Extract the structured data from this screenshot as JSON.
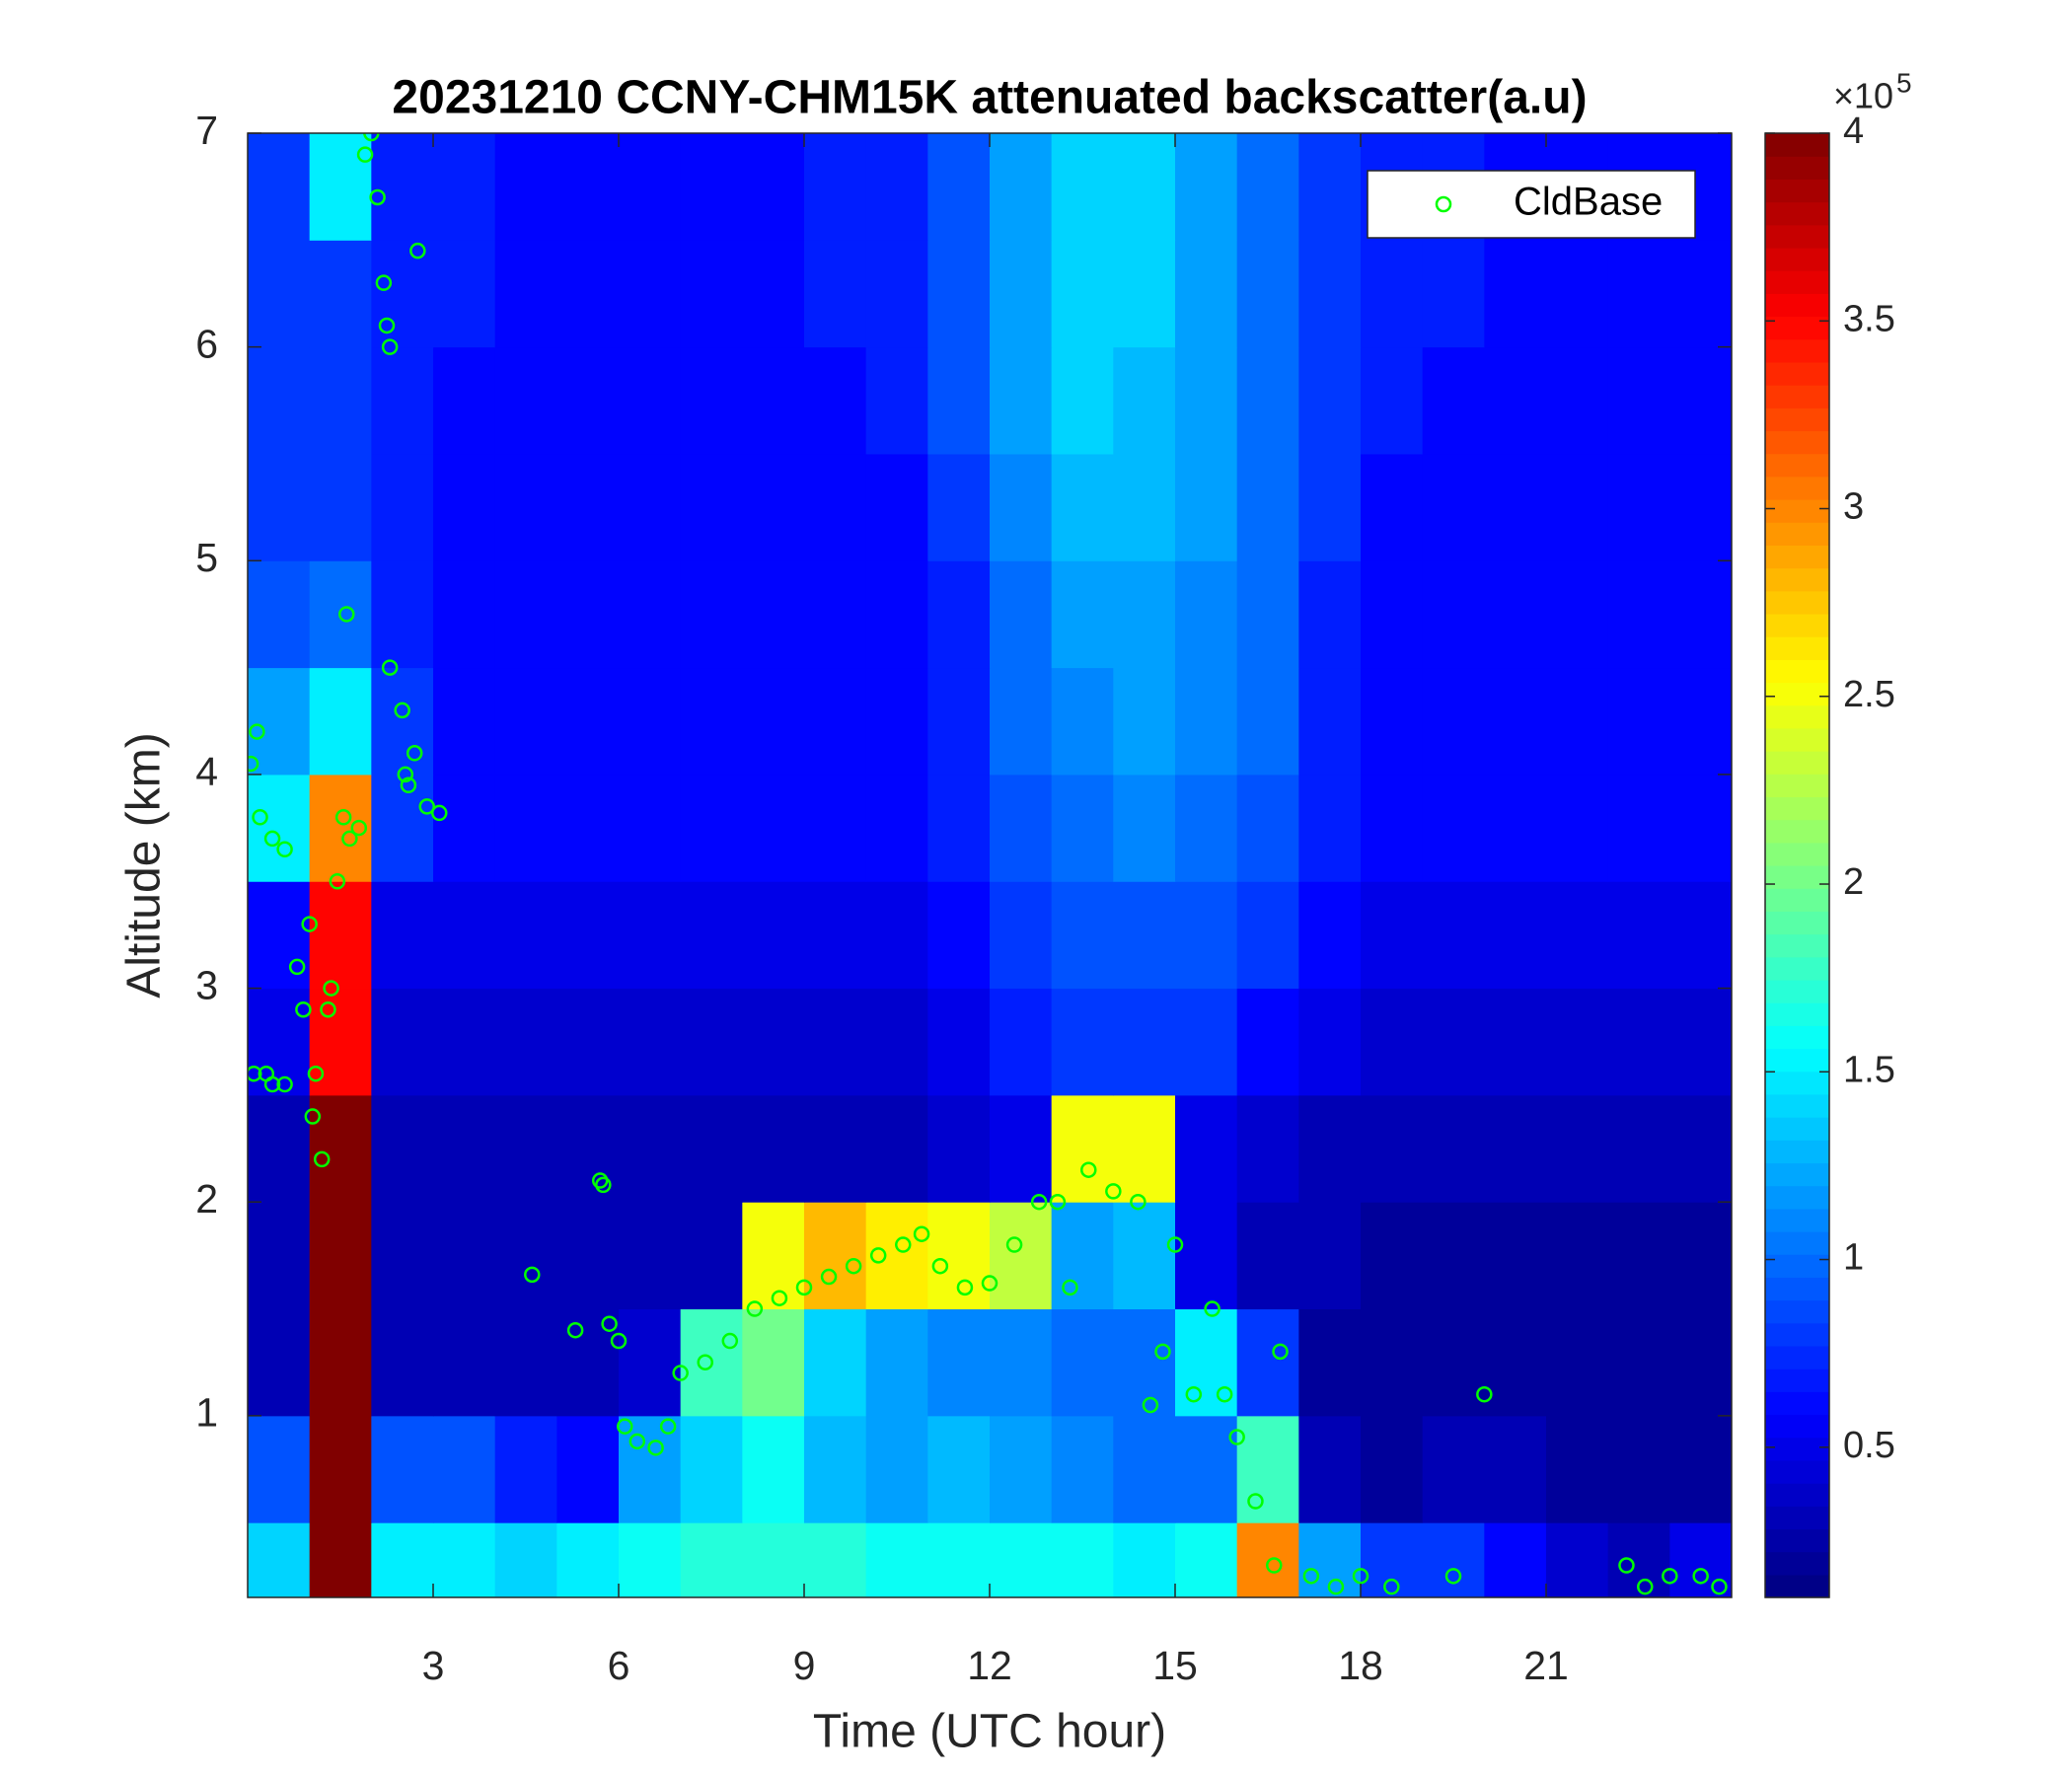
{
  "chart_data": {
    "type": "heatmap",
    "title": "20231210 CCNY-CHM15K attenuated backscatter(a.u)",
    "x_label": "Time (UTC hour)",
    "y_label": "Altitude (km)",
    "xlim": [
      0,
      24
    ],
    "ylim": [
      0.15,
      7
    ],
    "xticks": [
      3,
      6,
      9,
      12,
      15,
      18,
      21
    ],
    "yticks": [
      1,
      2,
      3,
      4,
      5,
      6,
      7
    ],
    "colormap": "jet",
    "clim": [
      0.1,
      4
    ],
    "cticks": [
      0.5,
      1,
      1.5,
      2,
      2.5,
      3,
      3.5,
      4
    ],
    "colorbar_multiplier": "×10",
    "colorbar_exponent": "5",
    "legend": "upper right",
    "x_edges": [
      0,
      1,
      2,
      3,
      4,
      5,
      6,
      7,
      8,
      9,
      10,
      11,
      12,
      13,
      14,
      15,
      16,
      17,
      18,
      19,
      20,
      21,
      22,
      23,
      24
    ],
    "y_edges": [
      0.15,
      0.5,
      1,
      1.5,
      2,
      2.5,
      3,
      3.5,
      4,
      4.5,
      5,
      5.5,
      6,
      6.5,
      7
    ],
    "z": [
      [
        1.4,
        4.0,
        1.5,
        1.5,
        1.4,
        1.5,
        1.6,
        1.7,
        1.7,
        1.7,
        1.6,
        1.6,
        1.6,
        1.6,
        1.5,
        1.6,
        3.0,
        1.2,
        0.8,
        0.8,
        0.6,
        0.4,
        0.3,
        0.5
      ],
      [
        0.9,
        4.0,
        0.9,
        0.9,
        0.7,
        0.6,
        1.2,
        1.4,
        1.6,
        1.3,
        1.2,
        1.3,
        1.2,
        1.1,
        1.0,
        1.0,
        1.8,
        0.3,
        0.2,
        0.3,
        0.3,
        0.2,
        0.2,
        0.2
      ],
      [
        0.3,
        4.0,
        0.3,
        0.3,
        0.3,
        0.3,
        0.4,
        1.8,
        2.0,
        1.4,
        1.2,
        1.1,
        1.1,
        1.0,
        1.0,
        1.5,
        0.8,
        0.2,
        0.2,
        0.2,
        0.2,
        0.2,
        0.2,
        0.2
      ],
      [
        0.3,
        4.0,
        0.3,
        0.3,
        0.3,
        0.3,
        0.3,
        0.3,
        2.5,
        2.8,
        2.6,
        2.5,
        2.3,
        1.2,
        1.3,
        0.5,
        0.3,
        0.3,
        0.2,
        0.2,
        0.2,
        0.2,
        0.2,
        0.2
      ],
      [
        0.3,
        4.0,
        0.3,
        0.3,
        0.3,
        0.3,
        0.3,
        0.3,
        0.3,
        0.3,
        0.3,
        0.4,
        0.5,
        2.5,
        2.5,
        0.5,
        0.4,
        0.3,
        0.3,
        0.3,
        0.3,
        0.3,
        0.3,
        0.3
      ],
      [
        0.5,
        3.5,
        0.4,
        0.4,
        0.4,
        0.4,
        0.4,
        0.4,
        0.4,
        0.4,
        0.4,
        0.5,
        0.7,
        0.8,
        0.8,
        0.8,
        0.6,
        0.5,
        0.4,
        0.4,
        0.4,
        0.4,
        0.4,
        0.4
      ],
      [
        0.6,
        3.5,
        0.5,
        0.5,
        0.5,
        0.5,
        0.5,
        0.5,
        0.5,
        0.5,
        0.5,
        0.6,
        0.8,
        0.9,
        0.9,
        0.9,
        0.8,
        0.6,
        0.5,
        0.5,
        0.5,
        0.5,
        0.5,
        0.5
      ],
      [
        1.5,
        3.0,
        0.8,
        0.6,
        0.6,
        0.6,
        0.6,
        0.6,
        0.6,
        0.6,
        0.6,
        0.7,
        0.9,
        1.0,
        1.1,
        1.0,
        0.9,
        0.7,
        0.6,
        0.6,
        0.6,
        0.6,
        0.6,
        0.6
      ],
      [
        1.2,
        1.5,
        0.8,
        0.6,
        0.6,
        0.6,
        0.6,
        0.6,
        0.6,
        0.6,
        0.6,
        0.7,
        1.0,
        1.1,
        1.2,
        1.1,
        1.0,
        0.7,
        0.6,
        0.6,
        0.6,
        0.6,
        0.6,
        0.6
      ],
      [
        0.9,
        1.0,
        0.7,
        0.6,
        0.6,
        0.6,
        0.6,
        0.6,
        0.6,
        0.6,
        0.6,
        0.7,
        1.0,
        1.2,
        1.2,
        1.1,
        1.0,
        0.7,
        0.6,
        0.6,
        0.6,
        0.6,
        0.6,
        0.6
      ],
      [
        0.8,
        0.8,
        0.7,
        0.6,
        0.6,
        0.6,
        0.6,
        0.6,
        0.6,
        0.6,
        0.6,
        0.8,
        1.1,
        1.3,
        1.3,
        1.2,
        1.0,
        0.8,
        0.6,
        0.6,
        0.6,
        0.6,
        0.6,
        0.6
      ],
      [
        0.8,
        0.8,
        0.7,
        0.6,
        0.6,
        0.6,
        0.6,
        0.6,
        0.6,
        0.6,
        0.7,
        0.9,
        1.2,
        1.4,
        1.3,
        1.2,
        1.0,
        0.8,
        0.7,
        0.6,
        0.6,
        0.6,
        0.6,
        0.6
      ],
      [
        0.8,
        0.8,
        0.7,
        0.7,
        0.6,
        0.6,
        0.6,
        0.6,
        0.6,
        0.7,
        0.7,
        0.9,
        1.2,
        1.4,
        1.4,
        1.2,
        1.0,
        0.8,
        0.7,
        0.7,
        0.6,
        0.6,
        0.6,
        0.6
      ],
      [
        0.8,
        1.5,
        0.7,
        0.7,
        0.6,
        0.6,
        0.6,
        0.6,
        0.6,
        0.7,
        0.7,
        0.9,
        1.2,
        1.4,
        1.4,
        1.2,
        1.0,
        0.8,
        0.7,
        0.7,
        0.6,
        0.6,
        0.6,
        0.6
      ]
    ],
    "series": [
      {
        "type": "scatter",
        "name": "CldBase",
        "color": "#00ff00",
        "x": [
          0.05,
          0.15,
          0.2,
          0.4,
          0.6,
          0.8,
          0.9,
          1.0,
          1.05,
          1.1,
          1.2,
          1.3,
          1.35,
          1.45,
          1.55,
          1.65,
          1.8,
          1.9,
          2.0,
          2.1,
          2.2,
          2.25,
          2.3,
          2.3,
          2.5,
          2.55,
          2.6,
          2.7,
          2.75,
          2.9,
          3.1,
          0.1,
          0.3,
          0.4,
          0.6,
          1.6,
          4.6,
          5.3,
          5.7,
          5.75,
          5.85,
          6.0,
          6.1,
          6.3,
          6.6,
          6.8,
          7.0,
          7.4,
          7.8,
          8.2,
          8.6,
          9.0,
          9.4,
          9.8,
          10.2,
          10.6,
          10.9,
          11.2,
          11.6,
          12.0,
          12.4,
          12.8,
          13.1,
          13.3,
          13.6,
          14.0,
          14.4,
          14.6,
          14.8,
          15.0,
          15.3,
          15.6,
          15.8,
          16.0,
          16.3,
          16.6,
          16.7,
          17.2,
          17.6,
          18.0,
          18.5,
          19.5,
          20.0,
          22.3,
          22.6,
          23.0,
          23.5,
          23.8
        ],
        "values": [
          4.05,
          4.2,
          3.8,
          3.7,
          3.65,
          3.1,
          2.9,
          3.3,
          2.4,
          2.6,
          2.2,
          2.9,
          3.0,
          3.5,
          3.8,
          3.7,
          3.75,
          6.9,
          7.0,
          6.7,
          6.3,
          6.1,
          6.0,
          4.5,
          4.3,
          4.0,
          3.95,
          4.1,
          6.45,
          3.85,
          3.82,
          2.6,
          2.6,
          2.55,
          2.55,
          4.75,
          1.66,
          1.4,
          2.1,
          2.08,
          1.43,
          1.35,
          0.95,
          0.88,
          0.85,
          0.95,
          1.2,
          1.25,
          1.35,
          1.5,
          1.55,
          1.6,
          1.65,
          1.7,
          1.75,
          1.8,
          1.85,
          1.7,
          1.6,
          1.62,
          1.8,
          2.0,
          2.0,
          1.6,
          2.15,
          2.05,
          2.0,
          1.05,
          1.3,
          1.8,
          1.1,
          1.5,
          1.1,
          0.9,
          0.6,
          0.3,
          1.3,
          0.25,
          0.2,
          0.25,
          0.2,
          0.25,
          1.1,
          0.3,
          0.2,
          0.25,
          0.25,
          0.2
        ]
      }
    ]
  }
}
